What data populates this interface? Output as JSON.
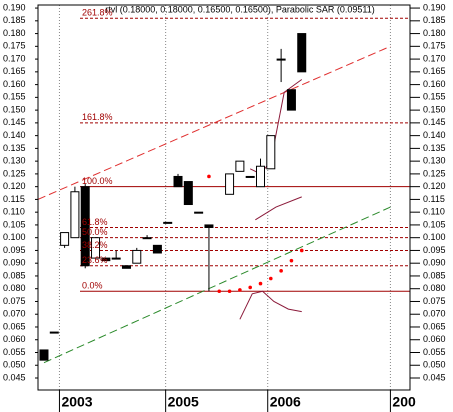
{
  "chart_data": {
    "type": "candlestick",
    "title": "rtvl (0.18000, 0.18000, 0.16500, 0.16500), Parabolic SAR (0.09511)",
    "x": [
      0,
      1,
      2,
      3,
      4,
      5,
      6,
      7,
      8,
      9,
      10,
      11,
      12,
      13,
      14,
      15,
      16,
      18,
      19,
      20,
      21,
      22,
      23,
      24,
      25
    ],
    "open": [
      0.056,
      0.063,
      0.097,
      0.1,
      0.12,
      0.092,
      0.092,
      0.092,
      0.089,
      0.09,
      0.1,
      0.097,
      0.106,
      0.124,
      0.122,
      0.11,
      0.105,
      0.117,
      0.126,
      0.124,
      0.12,
      0.127,
      0.17,
      0.158,
      0.18
    ],
    "high": [
      0.056,
      0.063,
      0.102,
      0.12,
      0.121,
      0.1,
      0.092,
      0.095,
      0.089,
      0.096,
      0.101,
      0.097,
      0.106,
      0.125,
      0.122,
      0.11,
      0.105,
      0.125,
      0.13,
      0.124,
      0.131,
      0.14,
      0.174,
      0.158,
      0.18
    ],
    "low": [
      0.052,
      0.063,
      0.096,
      0.1,
      0.088,
      0.092,
      0.091,
      0.092,
      0.088,
      0.09,
      0.1,
      0.094,
      0.106,
      0.12,
      0.113,
      0.11,
      0.079,
      0.117,
      0.126,
      0.124,
      0.12,
      0.127,
      0.161,
      0.15,
      0.165
    ],
    "close": [
      0.052,
      0.063,
      0.102,
      0.118,
      0.089,
      0.1,
      0.091,
      0.092,
      0.088,
      0.095,
      0.1,
      0.094,
      0.106,
      0.12,
      0.113,
      0.11,
      0.104,
      0.125,
      0.13,
      0.124,
      0.128,
      0.14,
      0.17,
      0.15,
      0.165
    ],
    "up_color": "#ffffff",
    "down_color": "#000000",
    "xlim": [
      -0.58,
      35.5
    ],
    "ylim": [
      0.0403,
      0.1912
    ],
    "xticks": [
      {
        "value": 1.5,
        "label": "2003"
      },
      {
        "value": 11.8,
        "label": "2005"
      },
      {
        "value": 21.7,
        "label": "2006"
      },
      {
        "value": 33.6,
        "label": "200"
      }
    ],
    "yticks": [
      {
        "value": 0.045,
        "label": "0.045"
      },
      {
        "value": 0.05,
        "label": "0.050"
      },
      {
        "value": 0.055,
        "label": "0.055"
      },
      {
        "value": 0.06,
        "label": "0.060"
      },
      {
        "value": 0.065,
        "label": "0.065"
      },
      {
        "value": 0.07,
        "label": "0.070"
      },
      {
        "value": 0.075,
        "label": "0.075"
      },
      {
        "value": 0.08,
        "label": "0.080"
      },
      {
        "value": 0.085,
        "label": "0.085"
      },
      {
        "value": 0.09,
        "label": "0.090"
      },
      {
        "value": 0.095,
        "label": "0.095"
      },
      {
        "value": 0.1,
        "label": "0.100"
      },
      {
        "value": 0.105,
        "label": "0.105"
      },
      {
        "value": 0.11,
        "label": "0.110"
      },
      {
        "value": 0.115,
        "label": "0.115"
      },
      {
        "value": 0.12,
        "label": "0.120"
      },
      {
        "value": 0.125,
        "label": "0.125"
      },
      {
        "value": 0.13,
        "label": "0.130"
      },
      {
        "value": 0.135,
        "label": "0.135"
      },
      {
        "value": 0.14,
        "label": "0.140"
      },
      {
        "value": 0.145,
        "label": "0.145"
      },
      {
        "value": 0.15,
        "label": "0.150"
      },
      {
        "value": 0.155,
        "label": "0.155"
      },
      {
        "value": 0.16,
        "label": "0.160"
      },
      {
        "value": 0.165,
        "label": "0.165"
      },
      {
        "value": 0.17,
        "label": "0.170"
      },
      {
        "value": 0.175,
        "label": "0.175"
      },
      {
        "value": 0.18,
        "label": "0.180"
      },
      {
        "value": 0.185,
        "label": "0.185"
      },
      {
        "value": 0.19,
        "label": "0.190"
      }
    ],
    "fib_color": "#a00000",
    "fib_levels": [
      {
        "label": "261.8%",
        "value": 0.186,
        "style": "dashed"
      },
      {
        "label": "161.8%",
        "value": 0.145,
        "style": "dashed"
      },
      {
        "label": "100.0%",
        "value": 0.12,
        "style": "solid"
      },
      {
        "label": "61.8%",
        "value": 0.104,
        "style": "dashed"
      },
      {
        "label": "50.0%",
        "value": 0.1,
        "style": "dashed"
      },
      {
        "label": "38.2%",
        "value": 0.095,
        "style": "dashed"
      },
      {
        "label": "23.6%",
        "value": 0.089,
        "style": "dashed"
      },
      {
        "label": "0.0%",
        "value": 0.079,
        "style": "solid"
      }
    ],
    "trendlines": [
      {
        "color": "#e03030",
        "x": [
          -0.58,
          33.6
        ],
        "values": [
          0.115,
          0.175
        ]
      },
      {
        "color": "#2a8a2a",
        "x": [
          0,
          33.6
        ],
        "values": [
          0.051,
          0.112
        ]
      }
    ],
    "sar": {
      "color": "#ff0000",
      "x": [
        16,
        17,
        18,
        19,
        20,
        21,
        22,
        23,
        24,
        25
      ],
      "values": [
        0.124,
        0.079,
        0.079,
        0.0795,
        0.0805,
        0.082,
        0.084,
        0.087,
        0.091,
        0.095
      ]
    },
    "overlays": [
      {
        "color": "#8b1a3a",
        "x": [
          20,
          21,
          22,
          23.3,
          25
        ],
        "values": [
          0.127,
          0.125,
          0.13,
          0.157,
          0.162
        ]
      },
      {
        "color": "#8b1a3a",
        "x": [
          20.5,
          22.5,
          25
        ],
        "values": [
          0.107,
          0.112,
          0.116
        ]
      },
      {
        "color": "#8b1a3a",
        "x": [
          19,
          20.2,
          21.2,
          22.3,
          23.7,
          25
        ],
        "values": [
          0.068,
          0.078,
          0.079,
          0.075,
          0.072,
          0.071
        ]
      }
    ]
  }
}
